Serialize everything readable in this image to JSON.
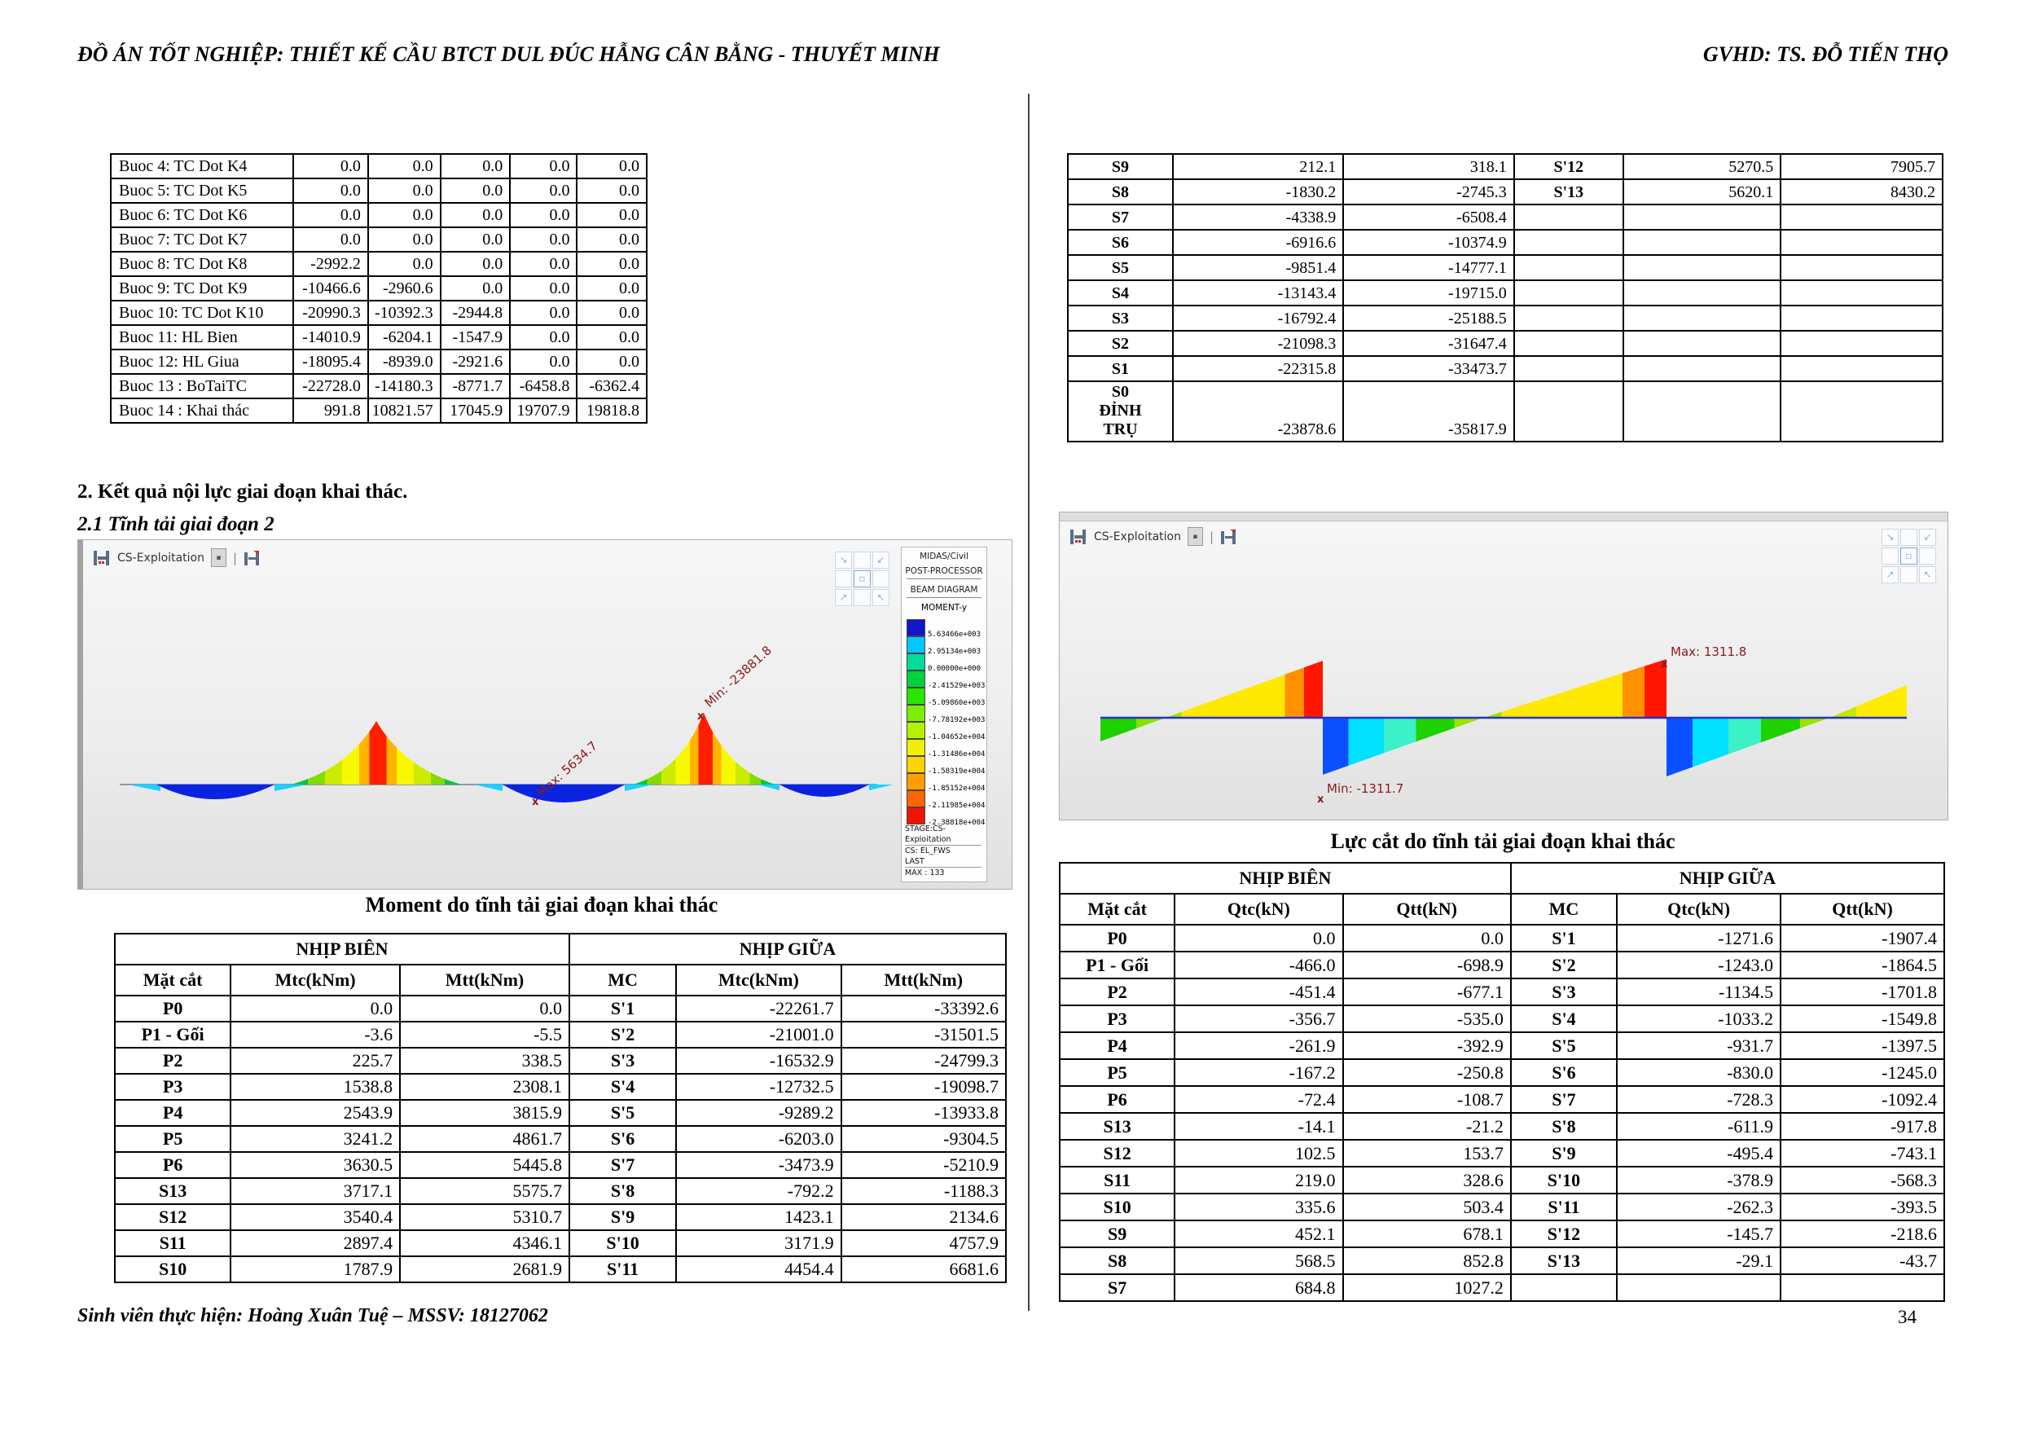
{
  "header": {
    "left": "ĐỒ ÁN TỐT NGHIỆP: THIẾT KẾ CẦU BTCT DUL ĐÚC HẪNG CÂN BẰNG - THUYẾT MINH",
    "right": "GVHD: TS. ĐỖ TIẾN THỌ"
  },
  "footer": {
    "left": "Sinh viên thực hiện: Hoàng Xuân Tuệ – MSSV: 18127062",
    "page": "34"
  },
  "section": {
    "heading": "2. Kết quả nội lực giai đoạn khai thác.",
    "subheading": "2.1 Tĩnh tải giai đoạn 2"
  },
  "captions": {
    "moment": "Moment do tĩnh tải giai đoạn khai thác",
    "shear": "Lực cắt do tĩnh tải giai đoạn khai thác"
  },
  "steps_table": {
    "rows": [
      [
        "Buoc 4: TC Dot K4",
        "0.0",
        "0.0",
        "0.0",
        "0.0",
        "0.0"
      ],
      [
        "Buoc 5: TC Dot K5",
        "0.0",
        "0.0",
        "0.0",
        "0.0",
        "0.0"
      ],
      [
        "Buoc 6: TC Dot K6",
        "0.0",
        "0.0",
        "0.0",
        "0.0",
        "0.0"
      ],
      [
        "Buoc 7: TC Dot K7",
        "0.0",
        "0.0",
        "0.0",
        "0.0",
        "0.0"
      ],
      [
        "Buoc 8: TC Dot K8",
        "-2992.2",
        "0.0",
        "0.0",
        "0.0",
        "0.0"
      ],
      [
        "Buoc 9: TC Dot K9",
        "-10466.6",
        "-2960.6",
        "0.0",
        "0.0",
        "0.0"
      ],
      [
        "Buoc 10: TC Dot K10",
        "-20990.3",
        "-10392.3",
        "-2944.8",
        "0.0",
        "0.0"
      ],
      [
        "Buoc 11: HL Bien",
        "-14010.9",
        "-6204.1",
        "-1547.9",
        "0.0",
        "0.0"
      ],
      [
        "Buoc 12: HL Giua",
        "-18095.4",
        "-8939.0",
        "-2921.6",
        "0.0",
        "0.0"
      ],
      [
        "Buoc 13 : BoTaiTC",
        "-22728.0",
        "-14180.3",
        "-8771.7",
        "-6458.8",
        "-6362.4"
      ],
      [
        "Buoc 14 : Khai thác",
        "991.8",
        "10821.57",
        "17045.9",
        "19707.9",
        "19818.8"
      ]
    ]
  },
  "cont_table": {
    "rows": [
      [
        "S9",
        "212.1",
        "318.1",
        "S'12",
        "5270.5",
        "7905.7"
      ],
      [
        "S8",
        "-1830.2",
        "-2745.3",
        "S'13",
        "5620.1",
        "8430.2"
      ],
      [
        "S7",
        "-4338.9",
        "-6508.4",
        "",
        "",
        ""
      ],
      [
        "S6",
        "-6916.6",
        "-10374.9",
        "",
        "",
        ""
      ],
      [
        "S5",
        "-9851.4",
        "-14777.1",
        "",
        "",
        ""
      ],
      [
        "S4",
        "-13143.4",
        "-19715.0",
        "",
        "",
        ""
      ],
      [
        "S3",
        "-16792.4",
        "-25188.5",
        "",
        "",
        ""
      ],
      [
        "S2",
        "-21098.3",
        "-31647.4",
        "",
        "",
        ""
      ],
      [
        "S1",
        "-22315.8",
        "-33473.7",
        "",
        "",
        ""
      ],
      [
        "S0\nĐỈNH\nTRỤ",
        "-23878.6",
        "-35817.9",
        "",
        "",
        ""
      ]
    ]
  },
  "moment_table": {
    "group_headers": [
      "NHỊP BIÊN",
      "NHỊP GIỮA"
    ],
    "col_headers": [
      "Mặt cắt",
      "Mtc(kNm)",
      "Mtt(kNm)",
      "MC",
      "Mtc(kNm)",
      "Mtt(kNm)"
    ],
    "rows": [
      [
        "P0",
        "0.0",
        "0.0",
        "S'1",
        "-22261.7",
        "-33392.6"
      ],
      [
        "P1 - Gối",
        "-3.6",
        "-5.5",
        "S'2",
        "-21001.0",
        "-31501.5"
      ],
      [
        "P2",
        "225.7",
        "338.5",
        "S'3",
        "-16532.9",
        "-24799.3"
      ],
      [
        "P3",
        "1538.8",
        "2308.1",
        "S'4",
        "-12732.5",
        "-19098.7"
      ],
      [
        "P4",
        "2543.9",
        "3815.9",
        "S'5",
        "-9289.2",
        "-13933.8"
      ],
      [
        "P5",
        "3241.2",
        "4861.7",
        "S'6",
        "-6203.0",
        "-9304.5"
      ],
      [
        "P6",
        "3630.5",
        "5445.8",
        "S'7",
        "-3473.9",
        "-5210.9"
      ],
      [
        "S13",
        "3717.1",
        "5575.7",
        "S'8",
        "-792.2",
        "-1188.3"
      ],
      [
        "S12",
        "3540.4",
        "5310.7",
        "S'9",
        "1423.1",
        "2134.6"
      ],
      [
        "S11",
        "2897.4",
        "4346.1",
        "S'10",
        "3171.9",
        "4757.9"
      ],
      [
        "S10",
        "1787.9",
        "2681.9",
        "S'11",
        "4454.4",
        "6681.6"
      ]
    ]
  },
  "shear_table": {
    "group_headers": [
      "NHỊP BIÊN",
      "NHỊP GIỮA"
    ],
    "col_headers": [
      "Mặt cắt",
      "Qtc(kN)",
      "Qtt(kN)",
      "MC",
      "Qtc(kN)",
      "Qtt(kN)"
    ],
    "rows": [
      [
        "P0",
        "0.0",
        "0.0",
        "S'1",
        "-1271.6",
        "-1907.4"
      ],
      [
        "P1 - Gối",
        "-466.0",
        "-698.9",
        "S'2",
        "-1243.0",
        "-1864.5"
      ],
      [
        "P2",
        "-451.4",
        "-677.1",
        "S'3",
        "-1134.5",
        "-1701.8"
      ],
      [
        "P3",
        "-356.7",
        "-535.0",
        "S'4",
        "-1033.2",
        "-1549.8"
      ],
      [
        "P4",
        "-261.9",
        "-392.9",
        "S'5",
        "-931.7",
        "-1397.5"
      ],
      [
        "P5",
        "-167.2",
        "-250.8",
        "S'6",
        "-830.0",
        "-1245.0"
      ],
      [
        "P6",
        "-72.4",
        "-108.7",
        "S'7",
        "-728.3",
        "-1092.4"
      ],
      [
        "S13",
        "-14.1",
        "-21.2",
        "S'8",
        "-611.9",
        "-917.8"
      ],
      [
        "S12",
        "102.5",
        "153.7",
        "S'9",
        "-495.4",
        "-743.1"
      ],
      [
        "S11",
        "219.0",
        "328.6",
        "S'10",
        "-378.9",
        "-568.3"
      ],
      [
        "S10",
        "335.6",
        "503.4",
        "S'11",
        "-262.3",
        "-393.5"
      ],
      [
        "S9",
        "452.1",
        "678.1",
        "S'12",
        "-145.7",
        "-218.6"
      ],
      [
        "S8",
        "568.5",
        "852.8",
        "S'13",
        "-29.1",
        "-43.7"
      ],
      [
        "S7",
        "684.8",
        "1027.2",
        "",
        "",
        ""
      ]
    ]
  },
  "moment_diagram": {
    "tab": "CS-Exploitation",
    "max_label": "Max: 5634.7",
    "min_label": "Min: -23881.8",
    "marker": "x",
    "legend": {
      "app": "MIDAS/Civil",
      "proc": "POST-PROCESSOR",
      "type": "BEAM DIAGRAM",
      "component": "MOMENT-y",
      "entries": [
        {
          "color": "#1414c8",
          "value": "5.63466e+003"
        },
        {
          "color": "#00c8ff",
          "value": "2.95134e+003"
        },
        {
          "color": "#00dc9b",
          "value": "0.00000e+000"
        },
        {
          "color": "#00d23c",
          "value": "-2.41529e+003"
        },
        {
          "color": "#28e600",
          "value": "-5.09860e+003"
        },
        {
          "color": "#78f000",
          "value": "-7.78192e+003"
        },
        {
          "color": "#b4f000",
          "value": "-1.04652e+004"
        },
        {
          "color": "#f0f000",
          "value": "-1.31486e+004"
        },
        {
          "color": "#ffd200",
          "value": "-1.58319e+004"
        },
        {
          "color": "#ffa000",
          "value": "-1.85152e+004"
        },
        {
          "color": "#ff6400",
          "value": "-2.11985e+004"
        },
        {
          "color": "#f01400",
          "value": "-2.38818e+004"
        }
      ],
      "stage": "STAGE:CS-Exploitation",
      "cs": "CS: EL_FWS",
      "last": "LAST",
      "max": "MAX : 133"
    }
  },
  "shear_diagram": {
    "tab": "CS-Exploitation",
    "max_label": "Max: 1311.8",
    "min_label": "Min: -1311.7",
    "marker": "x"
  }
}
